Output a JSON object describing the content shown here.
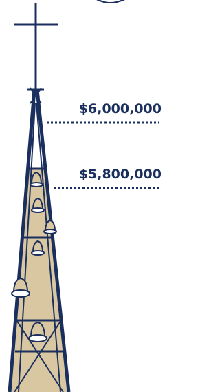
{
  "markers": [
    {
      "label": "$6,000,000"
    },
    {
      "label": "$5,800,000"
    }
  ]
}
